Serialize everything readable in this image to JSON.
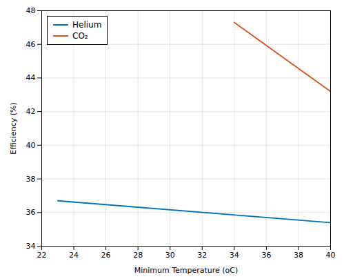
{
  "chart_data": {
    "type": "line",
    "xlabel": "Minimum Temperature (oC)",
    "ylabel": "Efficiency (%)",
    "series": [
      {
        "name": "Helium",
        "color": "#0072BD",
        "x": [
          23,
          40
        ],
        "values": [
          36.7,
          35.4
        ]
      },
      {
        "name": "CO₂",
        "color": "#D95319",
        "x": [
          34,
          40
        ],
        "values": [
          47.3,
          43.2
        ]
      }
    ],
    "xlim": [
      22,
      40
    ],
    "ylim": [
      34,
      48
    ],
    "xticks": [
      22,
      24,
      26,
      28,
      30,
      32,
      34,
      36,
      38,
      40
    ],
    "yticks": [
      34,
      36,
      38,
      40,
      42,
      44,
      46,
      48
    ],
    "grid": true,
    "legend": "upper left"
  }
}
